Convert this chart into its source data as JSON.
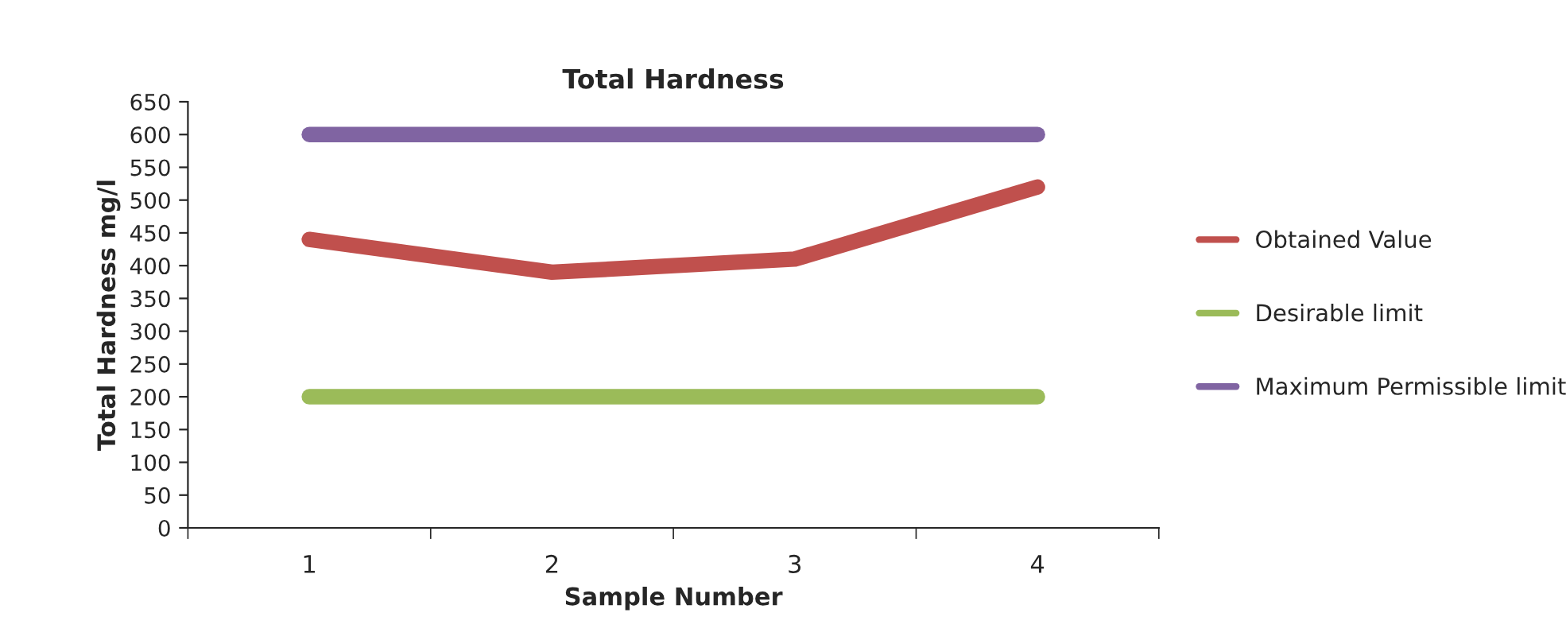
{
  "chart_data": {
    "type": "line",
    "title": "Total Hardness",
    "xlabel": "Sample Number",
    "ylabel": "Total Hardness mg/l",
    "categories": [
      "1",
      "2",
      "3",
      "4"
    ],
    "series": [
      {
        "name": "Obtained Value",
        "color": "#c0504d",
        "values": [
          440,
          390,
          410,
          520
        ]
      },
      {
        "name": "Desirable limit",
        "color": "#9bbb59",
        "values": [
          200,
          200,
          200,
          200
        ]
      },
      {
        "name": "Maximum Permissible limit",
        "color": "#8064a2",
        "values": [
          600,
          600,
          600,
          600
        ]
      }
    ],
    "ylim": [
      0,
      650
    ],
    "yticks": [
      0,
      50,
      100,
      150,
      200,
      250,
      300,
      350,
      400,
      450,
      500,
      550,
      600,
      650
    ],
    "grid": false,
    "legend": "right",
    "marker": "none",
    "line_style": "solid"
  }
}
